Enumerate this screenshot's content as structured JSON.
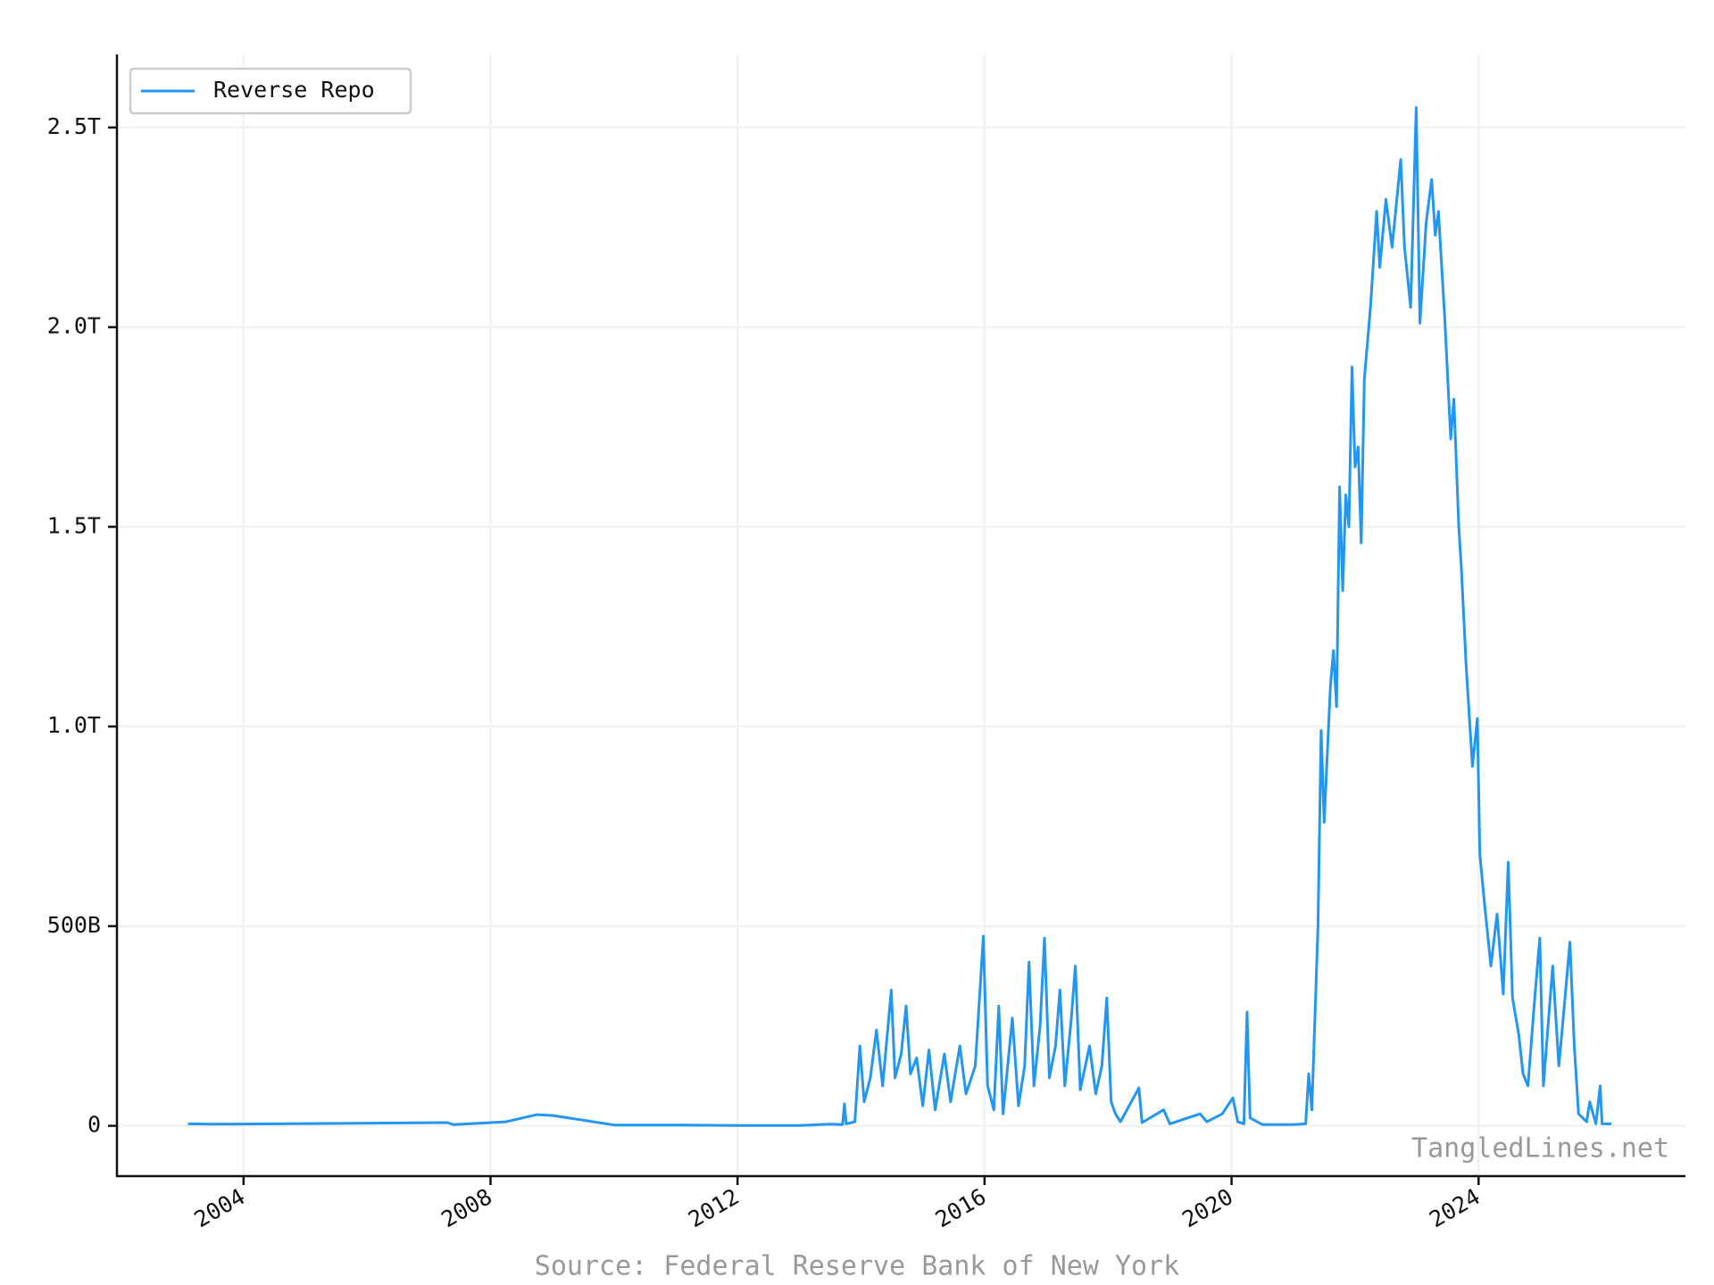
{
  "chart_data": {
    "type": "line",
    "source": "Source: Federal Reserve Bank of New York",
    "watermark": "TangledLines.net",
    "x": [
      2003.1,
      2003.5,
      2007.3,
      2007.4,
      2008.25,
      2008.75,
      2009.0,
      2010.0,
      2011.0,
      2012.0,
      2013.0,
      2013.5,
      2013.7,
      2013.73,
      2013.76,
      2013.9,
      2013.98,
      2014.05,
      2014.15,
      2014.25,
      2014.35,
      2014.49,
      2014.55,
      2014.65,
      2014.73,
      2014.8,
      2014.9,
      2015.0,
      2015.1,
      2015.2,
      2015.35,
      2015.45,
      2015.6,
      2015.7,
      2015.85,
      2015.98,
      2016.05,
      2016.15,
      2016.23,
      2016.3,
      2016.45,
      2016.55,
      2016.65,
      2016.72,
      2016.8,
      2016.9,
      2016.97,
      2017.05,
      2017.15,
      2017.22,
      2017.3,
      2017.4,
      2017.47,
      2017.55,
      2017.7,
      2017.8,
      2017.9,
      2017.98,
      2018.05,
      2018.12,
      2018.2,
      2018.5,
      2018.55,
      2018.9,
      2019.0,
      2019.49,
      2019.6,
      2019.85,
      2020.02,
      2020.1,
      2020.2,
      2020.25,
      2020.3,
      2020.5,
      2021.0,
      2021.2,
      2021.25,
      2021.3,
      2021.4,
      2021.45,
      2021.5,
      2021.6,
      2021.65,
      2021.7,
      2021.75,
      2021.8,
      2021.85,
      2021.9,
      2021.95,
      2022.0,
      2022.05,
      2022.1,
      2022.15,
      2022.25,
      2022.35,
      2022.4,
      2022.5,
      2022.6,
      2022.74,
      2022.8,
      2022.9,
      2022.99,
      2023.05,
      2023.15,
      2023.24,
      2023.3,
      2023.35,
      2023.45,
      2023.55,
      2023.6,
      2023.68,
      2023.72,
      2023.8,
      2023.9,
      2023.98,
      2024.02,
      2024.1,
      2024.2,
      2024.3,
      2024.4,
      2024.48,
      2024.55,
      2024.65,
      2024.72,
      2024.8,
      2024.9,
      2024.99,
      2025.05,
      2025.2,
      2025.3,
      2025.4,
      2025.48,
      2025.55,
      2025.62,
      2025.75,
      2025.8,
      2025.9,
      2025.97,
      2026.0,
      2026.15
    ],
    "series": [
      {
        "name": "Reverse Repo",
        "color": "#2196f3",
        "values": [
          5,
          4,
          8,
          3,
          10,
          28,
          26,
          2,
          2,
          1,
          1,
          4,
          3,
          55,
          5,
          10,
          200,
          60,
          120,
          240,
          100,
          340,
          120,
          180,
          300,
          130,
          170,
          50,
          190,
          40,
          180,
          60,
          200,
          80,
          150,
          475,
          100,
          40,
          300,
          30,
          270,
          50,
          150,
          410,
          100,
          250,
          470,
          120,
          200,
          340,
          100,
          260,
          400,
          90,
          200,
          80,
          150,
          320,
          60,
          30,
          10,
          95,
          8,
          40,
          5,
          30,
          10,
          30,
          70,
          10,
          5,
          285,
          20,
          3,
          3,
          5,
          130,
          40,
          500,
          990,
          760,
          1100,
          1190,
          1050,
          1600,
          1340,
          1580,
          1500,
          1900,
          1650,
          1700,
          1460,
          1870,
          2050,
          2290,
          2150,
          2320,
          2200,
          2420,
          2200,
          2050,
          2550,
          2010,
          2260,
          2370,
          2230,
          2290,
          2030,
          1720,
          1820,
          1500,
          1400,
          1150,
          900,
          1020,
          680,
          550,
          400,
          530,
          330,
          660,
          320,
          230,
          130,
          100,
          300,
          470,
          100,
          400,
          150,
          320,
          460,
          200,
          30,
          10,
          60,
          5,
          100,
          5,
          5
        ]
      }
    ],
    "xlim": [
      2001.95,
      2027.35
    ],
    "xticks": [
      2004,
      2008,
      2012,
      2016,
      2020,
      2024
    ],
    "ylim": [
      -126,
      2683
    ],
    "yticks": [
      0,
      {
        "value": 500,
        "label": "500B"
      },
      {
        "value": 1000,
        "label": "1.0T"
      },
      {
        "value": 1500,
        "label": "1.5T"
      },
      {
        "value": 2000,
        "label": "2.0T"
      },
      {
        "value": 2500,
        "label": "2.5T"
      }
    ],
    "grid": true,
    "legend": "upper-left"
  }
}
